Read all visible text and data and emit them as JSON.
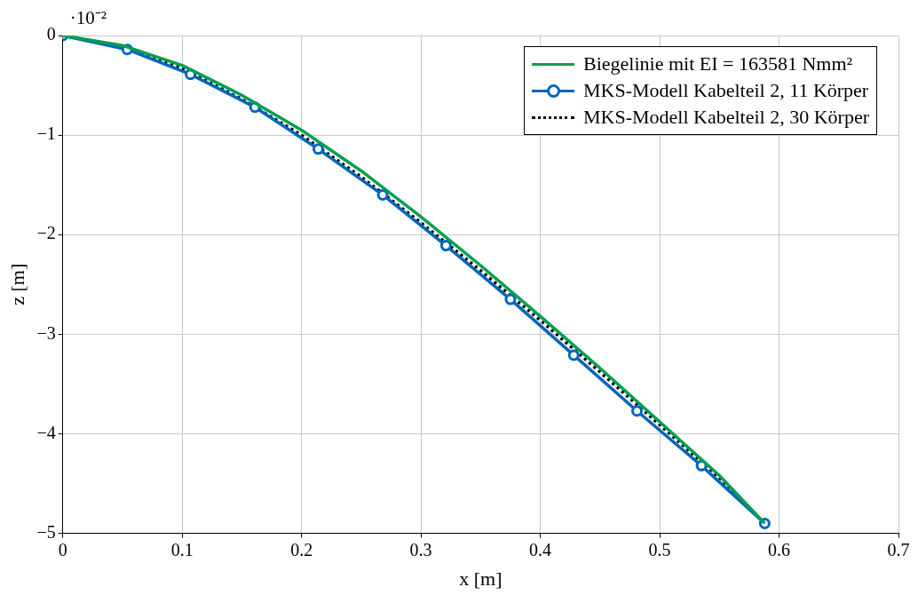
{
  "chart_data": {
    "type": "line",
    "xlabel": "x [m]",
    "ylabel": "z [m]",
    "annotations": [
      "·10⁻²"
    ],
    "xlim": [
      0,
      0.7
    ],
    "xticks": [
      0,
      0.1,
      0.2,
      0.3,
      0.4,
      0.5,
      0.6,
      0.7
    ],
    "ylim": [
      -5,
      0
    ],
    "yticks": [
      -5,
      -4,
      -3,
      -2,
      -1,
      0
    ],
    "grid": true,
    "legend": "top right",
    "series": [
      {
        "name": "Biegelinie mit EI = 163581 Nmm²",
        "color": "#00a050",
        "marker": "none",
        "line_style": "solid",
        "x": [
          0,
          0.05,
          0.1,
          0.15,
          0.2,
          0.25,
          0.3,
          0.35,
          0.4,
          0.45,
          0.5,
          0.55,
          0.588
        ],
        "values": [
          0,
          -0.1,
          -0.3,
          -0.6,
          -0.95,
          -1.36,
          -1.82,
          -2.31,
          -2.82,
          -3.34,
          -3.88,
          -4.42,
          -4.9
        ]
      },
      {
        "name": "MKS-Modell Kabelteil 2, 11 Körper",
        "color": "#0065bd",
        "marker": "circle",
        "line_style": "solid",
        "x": [
          0,
          0.054,
          0.107,
          0.161,
          0.214,
          0.268,
          0.321,
          0.375,
          0.428,
          0.481,
          0.535,
          0.588
        ],
        "values": [
          0,
          -0.14,
          -0.39,
          -0.72,
          -1.14,
          -1.6,
          -2.11,
          -2.65,
          -3.21,
          -3.77,
          -4.32,
          -4.9
        ]
      },
      {
        "name": "MKS-Modell Kabelteil 2, 30 Körper",
        "color": "#000000",
        "marker": "none",
        "line_style": "dotted",
        "x": [
          0,
          0.05,
          0.1,
          0.15,
          0.2,
          0.25,
          0.3,
          0.35,
          0.4,
          0.45,
          0.5,
          0.55,
          0.588
        ],
        "values": [
          0,
          -0.11,
          -0.33,
          -0.64,
          -1.0,
          -1.42,
          -1.88,
          -2.36,
          -2.86,
          -3.38,
          -3.91,
          -4.44,
          -4.9
        ]
      }
    ]
  }
}
